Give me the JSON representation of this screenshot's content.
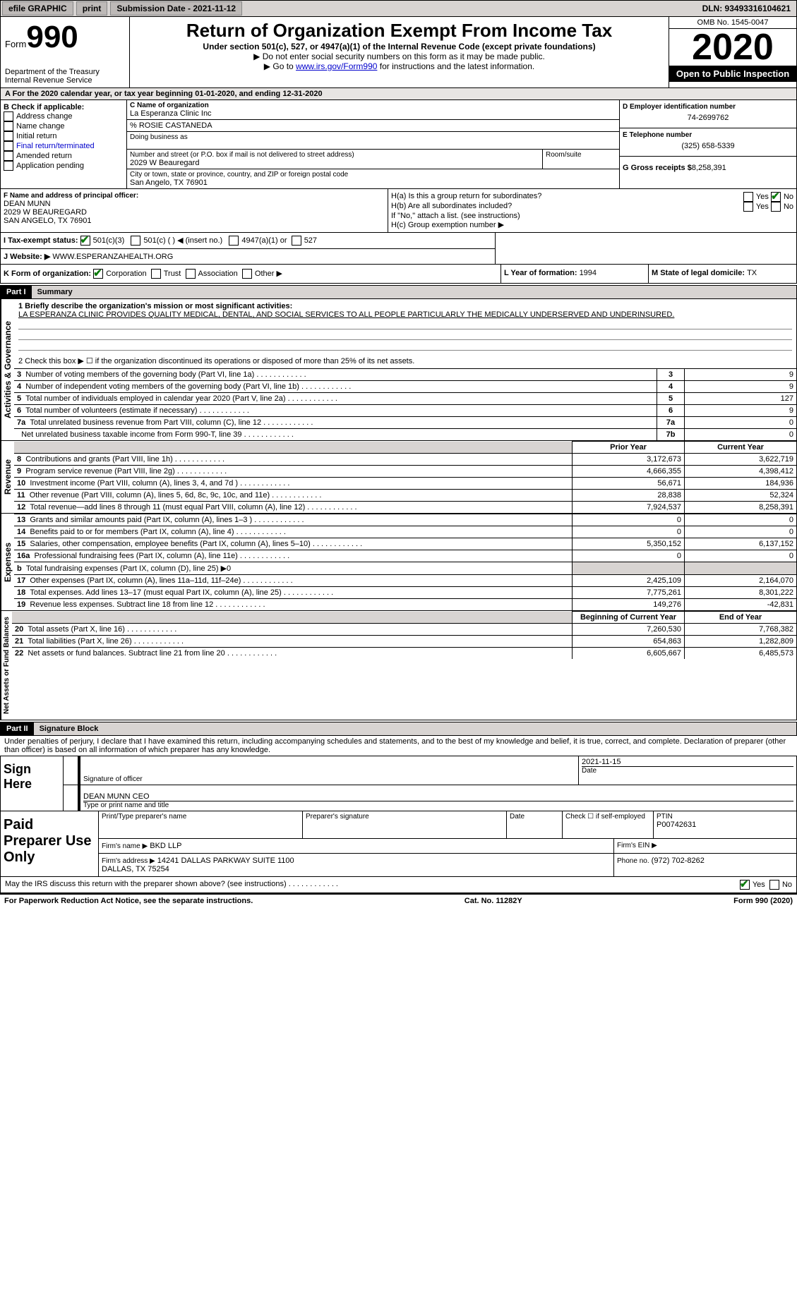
{
  "topbar": {
    "efile_label": "efile GRAPHIC",
    "print_label": "print",
    "sub_date_label": "Submission Date - 2021-11-12",
    "dln_label": "DLN: 93493316104621"
  },
  "header": {
    "form_label": "Form",
    "form_number": "990",
    "dept": "Department of the Treasury\nInternal Revenue Service",
    "title": "Return of Organization Exempt From Income Tax",
    "subtitle": "Under section 501(c), 527, or 4947(a)(1) of the Internal Revenue Code (except private foundations)",
    "warn1": "▶ Do not enter social security numbers on this form as it may be made public.",
    "warn2_pre": "▶ Go to ",
    "warn2_link": "www.irs.gov/Form990",
    "warn2_post": " for instructions and the latest information.",
    "omb": "OMB No. 1545-0047",
    "year": "2020",
    "inspect": "Open to Public Inspection"
  },
  "period": {
    "text_pre": "A For the 2020 calendar year, or tax year beginning ",
    "begin": "01-01-2020",
    "mid": ", and ending ",
    "end": "12-31-2020"
  },
  "box_b": {
    "title": "B Check if applicable:",
    "opts": [
      "Address change",
      "Name change",
      "Initial return",
      "Final return/terminated",
      "Amended return",
      "Application pending"
    ]
  },
  "box_c": {
    "label": "C Name of organization",
    "name": "La Esperanza Clinic Inc",
    "care_of": "% ROSIE CASTANEDA",
    "dba_label": "Doing business as",
    "addr_label": "Number and street (or P.O. box if mail is not delivered to street address)",
    "room_label": "Room/suite",
    "addr": "2029 W Beauregard",
    "city_label": "City or town, state or province, country, and ZIP or foreign postal code",
    "city": "San Angelo, TX  76901"
  },
  "box_d": {
    "label": "D Employer identification number",
    "value": "74-2699762"
  },
  "box_e": {
    "label": "E Telephone number",
    "value": "(325) 658-5339"
  },
  "box_g": {
    "label": "G Gross receipts $",
    "value": "8,258,391"
  },
  "box_f": {
    "label": "F Name and address of principal officer:",
    "name": "DEAN MUNN",
    "addr1": "2029 W BEAUREGARD",
    "addr2": "SAN ANGELO, TX  76901"
  },
  "box_h": {
    "ha_label": "H(a)  Is this a group return for subordinates?",
    "hb_label": "H(b)  Are all subordinates included?",
    "hb_note": "If \"No,\" attach a list. (see instructions)",
    "hc_label": "H(c)  Group exemption number ▶",
    "yes": "Yes",
    "no": "No"
  },
  "box_i": {
    "label": "I   Tax-exempt status:",
    "opts": [
      "501(c)(3)",
      "501(c) (    ) ◀ (insert no.)",
      "4947(a)(1) or",
      "527"
    ]
  },
  "box_j": {
    "label": "J   Website: ▶",
    "value": "WWW.ESPERANZAHEALTH.ORG"
  },
  "box_k": {
    "label": "K Form of organization:",
    "opts": [
      "Corporation",
      "Trust",
      "Association",
      "Other ▶"
    ]
  },
  "box_l": {
    "label": "L Year of formation: ",
    "value": "1994"
  },
  "box_m": {
    "label": "M State of legal domicile: ",
    "value": "TX"
  },
  "part1": {
    "header": "Part I",
    "title": "Summary",
    "vtext_gov": "Activities & Governance",
    "vtext_rev": "Revenue",
    "vtext_exp": "Expenses",
    "vtext_net": "Net Assets or Fund Balances",
    "line1_label": "1  Briefly describe the organization's mission or most significant activities:",
    "line1_text": "LA ESPERANZA CLINIC PROVIDES QUALITY MEDICAL, DENTAL, AND SOCIAL SERVICES TO ALL PEOPLE PARTICULARLY THE MEDICALLY UNDERSERVED AND UNDERINSURED.",
    "line2_label": "2   Check this box ▶ ☐  if the organization discontinued its operations or disposed of more than 25% of its net assets.",
    "gov_lines": [
      {
        "n": "3",
        "label": "Number of voting members of the governing body (Part VI, line 1a)",
        "box": "3",
        "val": "9"
      },
      {
        "n": "4",
        "label": "Number of independent voting members of the governing body (Part VI, line 1b)",
        "box": "4",
        "val": "9"
      },
      {
        "n": "5",
        "label": "Total number of individuals employed in calendar year 2020 (Part V, line 2a)",
        "box": "5",
        "val": "127"
      },
      {
        "n": "6",
        "label": "Total number of volunteers (estimate if necessary)",
        "box": "6",
        "val": "9"
      },
      {
        "n": "7a",
        "label": "Total unrelated business revenue from Part VIII, column (C), line 12",
        "box": "7a",
        "val": "0"
      },
      {
        "n": "",
        "label": "Net unrelated business taxable income from Form 990-T, line 39",
        "box": "7b",
        "val": "0"
      }
    ],
    "col_prior": "Prior Year",
    "col_curr": "Current Year",
    "col_boy": "Beginning of Current Year",
    "col_eoy": "End of Year",
    "rev_lines": [
      {
        "n": "8",
        "label": "Contributions and grants (Part VIII, line 1h)",
        "p": "3,172,673",
        "c": "3,622,719"
      },
      {
        "n": "9",
        "label": "Program service revenue (Part VIII, line 2g)",
        "p": "4,666,355",
        "c": "4,398,412"
      },
      {
        "n": "10",
        "label": "Investment income (Part VIII, column (A), lines 3, 4, and 7d )",
        "p": "56,671",
        "c": "184,936"
      },
      {
        "n": "11",
        "label": "Other revenue (Part VIII, column (A), lines 5, 6d, 8c, 9c, 10c, and 11e)",
        "p": "28,838",
        "c": "52,324"
      },
      {
        "n": "12",
        "label": "Total revenue—add lines 8 through 11 (must equal Part VIII, column (A), line 12)",
        "p": "7,924,537",
        "c": "8,258,391"
      }
    ],
    "exp_lines": [
      {
        "n": "13",
        "label": "Grants and similar amounts paid (Part IX, column (A), lines 1–3 )",
        "p": "0",
        "c": "0"
      },
      {
        "n": "14",
        "label": "Benefits paid to or for members (Part IX, column (A), line 4)",
        "p": "0",
        "c": "0"
      },
      {
        "n": "15",
        "label": "Salaries, other compensation, employee benefits (Part IX, column (A), lines 5–10)",
        "p": "5,350,152",
        "c": "6,137,152"
      },
      {
        "n": "16a",
        "label": "Professional fundraising fees (Part IX, column (A), line 11e)",
        "p": "0",
        "c": "0"
      },
      {
        "n": "b",
        "label": "Total fundraising expenses (Part IX, column (D), line 25) ▶0",
        "p": "",
        "c": "",
        "shade": true
      },
      {
        "n": "17",
        "label": "Other expenses (Part IX, column (A), lines 11a–11d, 11f–24e)",
        "p": "2,425,109",
        "c": "2,164,070"
      },
      {
        "n": "18",
        "label": "Total expenses. Add lines 13–17 (must equal Part IX, column (A), line 25)",
        "p": "7,775,261",
        "c": "8,301,222"
      },
      {
        "n": "19",
        "label": "Revenue less expenses. Subtract line 18 from line 12",
        "p": "149,276",
        "c": "-42,831"
      }
    ],
    "net_lines": [
      {
        "n": "20",
        "label": "Total assets (Part X, line 16)",
        "p": "7,260,530",
        "c": "7,768,382"
      },
      {
        "n": "21",
        "label": "Total liabilities (Part X, line 26)",
        "p": "654,863",
        "c": "1,282,809"
      },
      {
        "n": "22",
        "label": "Net assets or fund balances. Subtract line 21 from line 20",
        "p": "6,605,667",
        "c": "6,485,573"
      }
    ]
  },
  "part2": {
    "header": "Part II",
    "title": "Signature Block",
    "penalty": "Under penalties of perjury, I declare that I have examined this return, including accompanying schedules and statements, and to the best of my knowledge and belief, it is true, correct, and complete. Declaration of preparer (other than officer) is based on all information of which preparer has any knowledge.",
    "sign_here": "Sign Here",
    "sig_officer_label": "Signature of officer",
    "sig_date": "2021-11-15",
    "date_label": "Date",
    "officer_name": "DEAN MUNN  CEO",
    "officer_label": "Type or print name and title",
    "paid_prep": "Paid Preparer Use Only",
    "prep_name_label": "Print/Type preparer's name",
    "prep_sig_label": "Preparer's signature",
    "self_emp": "Check ☐ if self-employed",
    "ptin_label": "PTIN",
    "ptin": "P00742631",
    "firm_name_label": "Firm's name    ▶",
    "firm_name": "BKD LLP",
    "firm_ein_label": "Firm's EIN ▶",
    "firm_addr_label": "Firm's address ▶",
    "firm_addr": "14241 DALLAS PARKWAY SUITE 1100\nDALLAS, TX  75254",
    "phone_label": "Phone no.",
    "phone": "(972) 702-8262",
    "discuss": "May the IRS discuss this return with the preparer shown above? (see instructions)",
    "yes": "Yes",
    "no": "No"
  },
  "footer": {
    "left": "For Paperwork Reduction Act Notice, see the separate instructions.",
    "mid": "Cat. No. 11282Y",
    "right": "Form 990 (2020)"
  }
}
